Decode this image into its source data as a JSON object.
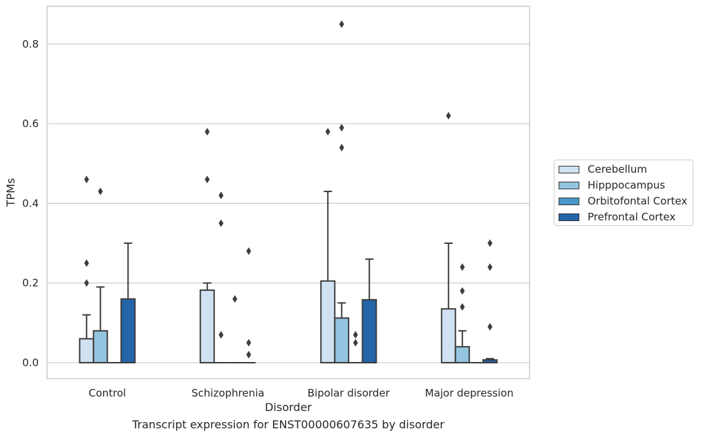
{
  "chart_data": {
    "type": "bar",
    "caption": "Transcript expression for ENST00000607635 by disorder",
    "xlabel": "Disorder",
    "ylabel": "TPMs",
    "ylim": [
      -0.04,
      0.895
    ],
    "yticks": [
      0.0,
      0.2,
      0.4,
      0.6,
      0.8
    ],
    "ytick_labels": [
      "0.0",
      "0.2",
      "0.4",
      "0.6",
      "0.8"
    ],
    "grid": true,
    "legend_position": "right",
    "categories": [
      "Control",
      "Schizophrenia",
      "Bipolar disorder",
      "Major depression"
    ],
    "series": [
      {
        "name": "Cerebellum",
        "color": "#d0e1f2",
        "values": [
          0.06,
          0.182,
          0.205,
          0.135
        ],
        "whisker_top": [
          0.12,
          0.2,
          0.43,
          0.3
        ],
        "outliers": [
          [
            0.2,
            0.25,
            0.46
          ],
          [
            0.58,
            0.46
          ],
          [
            0.58
          ],
          [
            0.62
          ]
        ]
      },
      {
        "name": "Hipppocampus",
        "color": "#94c4df",
        "values": [
          0.08,
          0.0,
          0.112,
          0.04
        ],
        "whisker_top": [
          0.19,
          null,
          0.15,
          0.08
        ],
        "outliers": [
          [
            0.43
          ],
          [
            0.07,
            0.35,
            0.42
          ],
          [
            0.54,
            0.59,
            0.85
          ],
          [
            0.14,
            0.18,
            0.24
          ]
        ]
      },
      {
        "name": "Orbitofontal Cortex",
        "color": "#4a98c9",
        "values": [
          0.0,
          0.0,
          0.0,
          0.0
        ],
        "whisker_top": [
          null,
          null,
          null,
          null
        ],
        "outliers": [
          [],
          [
            0.16
          ],
          [
            0.05,
            0.07
          ],
          []
        ]
      },
      {
        "name": "Prefrontal Cortex",
        "color": "#2464a8",
        "values": [
          0.16,
          0.0,
          0.158,
          0.007
        ],
        "whisker_top": [
          0.3,
          null,
          0.26,
          0.01
        ],
        "outliers": [
          [],
          [
            0.02,
            0.05,
            0.28
          ],
          [],
          [
            0.09,
            0.24,
            0.3
          ]
        ]
      }
    ]
  }
}
